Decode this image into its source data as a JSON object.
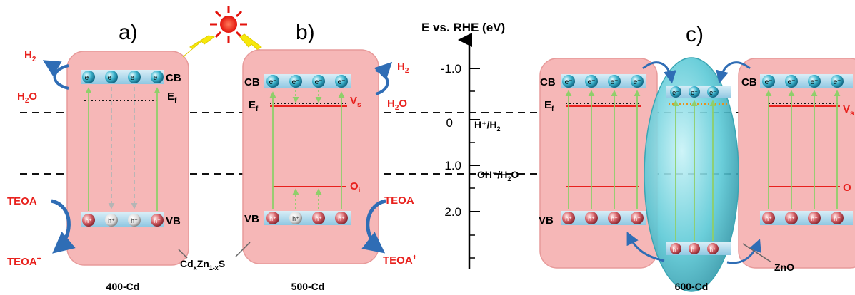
{
  "panels": {
    "a": {
      "letter": "a)",
      "caption": "400-Cd"
    },
    "b": {
      "letter": "b)",
      "caption": "500-Cd"
    },
    "c": {
      "letter": "c)",
      "caption": "600-Cd"
    }
  },
  "axis": {
    "title": "E vs. RHE (eV)",
    "ticks": [
      "-1.0",
      "0",
      "1.0",
      "2.0"
    ]
  },
  "labels": {
    "cb": "CB",
    "vb": "VB",
    "ef": "E",
    "ef_sub": "f",
    "vs": "V",
    "vs_sub": "s",
    "oi": "O",
    "oi_sub": "i",
    "electron": "e⁻",
    "hole": "h⁺",
    "h2": "H",
    "h2_sub": "2",
    "h2o": "H",
    "h2o_sub": "2",
    "h2o_tail": "O",
    "teoa": "TEOA",
    "teoa_plus": "TEOA",
    "plus": "+",
    "hplus_h2": "H⁺/H",
    "hplus_h2_sub": "2",
    "oh_h2o": "OH⁻/H",
    "oh_h2o_sub": "2",
    "oh_h2o_tail": "O",
    "cdzns_a": "Cd",
    "cdzns_x": "x",
    "cdzns_b": "Zn",
    "cdzns_1x": "1-x",
    "cdzns_c": "S",
    "zno": "ZnO"
  },
  "colors": {
    "box_fill": "#f6b7b7",
    "band_blue": "#a9d6ec",
    "accent_red": "#e8211d",
    "arrow_blue": "#2f6db5",
    "arrow_green": "#8fcf6a",
    "zno_fill": "#5bc9d6"
  }
}
